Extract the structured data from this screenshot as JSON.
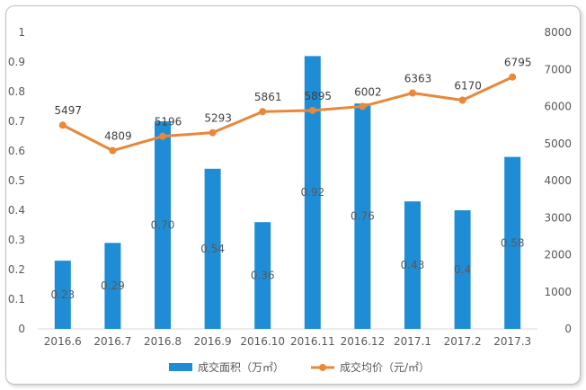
{
  "chart_data": {
    "type": "bar",
    "categories": [
      "2016.6",
      "2016.7",
      "2016.8",
      "2016.9",
      "2016.10",
      "2016.11",
      "2016.12",
      "2017.1",
      "2017.2",
      "2017.3"
    ],
    "series": [
      {
        "name": "成交面积（万㎡）",
        "type": "bar",
        "axis": "left",
        "values": [
          0.23,
          0.29,
          0.7,
          0.54,
          0.36,
          0.92,
          0.76,
          0.43,
          0.4,
          0.58
        ],
        "labels": [
          "0.23",
          "0.29",
          "0.70",
          "0.54",
          "0.36",
          "0.92",
          "0.76",
          "0.43",
          "0.4",
          "0.58"
        ],
        "color": "#1f8dd6"
      },
      {
        "name": "成交均价（元/㎡）",
        "type": "line",
        "axis": "right",
        "values": [
          5497,
          4809,
          5196,
          5293,
          5861,
          5895,
          6002,
          6363,
          6170,
          6795
        ],
        "labels": [
          "5497",
          "4809",
          "5196",
          "5293",
          "5861",
          "5895",
          "6002",
          "6363",
          "6170",
          "6795"
        ],
        "color": "#e8883a"
      }
    ],
    "y_left": {
      "min": 0,
      "max": 1,
      "ticks": [
        "0",
        "0.1",
        "0.2",
        "0.3",
        "0.4",
        "0.5",
        "0.6",
        "0.7",
        "0.8",
        "0.9",
        "1"
      ]
    },
    "y_right": {
      "min": 0,
      "max": 8000,
      "ticks": [
        "0",
        "1000",
        "2000",
        "3000",
        "4000",
        "5000",
        "6000",
        "7000",
        "8000"
      ]
    },
    "grid": false,
    "legend_position": "bottom"
  },
  "legend": {
    "bar_label": "成交面积（万㎡）",
    "line_label": "成交均价（元/㎡）"
  }
}
